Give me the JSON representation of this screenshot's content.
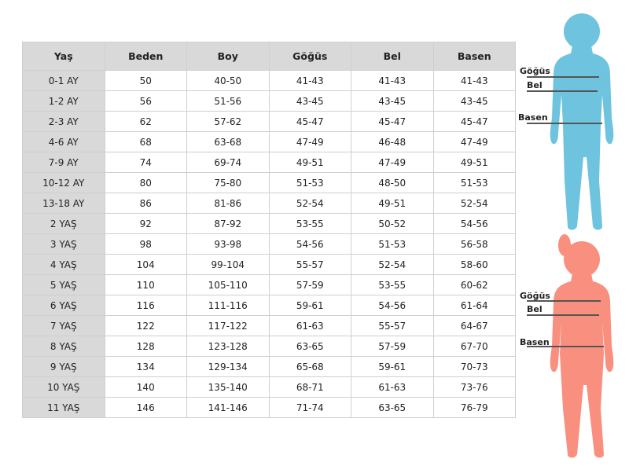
{
  "table": {
    "headers": [
      "Yaş",
      "Beden",
      "Boy",
      "Göğüs",
      "Bel",
      "Basen"
    ],
    "rows": [
      [
        "0-1 AY",
        "50",
        "40-50",
        "41-43",
        "41-43",
        "41-43"
      ],
      [
        "1-2 AY",
        "56",
        "51-56",
        "43-45",
        "43-45",
        "43-45"
      ],
      [
        "2-3 AY",
        "62",
        "57-62",
        "45-47",
        "45-47",
        "45-47"
      ],
      [
        "4-6 AY",
        "68",
        "63-68",
        "47-49",
        "46-48",
        "47-49"
      ],
      [
        "7-9 AY",
        "74",
        "69-74",
        "49-51",
        "47-49",
        "49-51"
      ],
      [
        "10-12 AY",
        "80",
        "75-80",
        "51-53",
        "48-50",
        "51-53"
      ],
      [
        "13-18 AY",
        "86",
        "81-86",
        "52-54",
        "49-51",
        "52-54"
      ],
      [
        "2 YAŞ",
        "92",
        "87-92",
        "53-55",
        "50-52",
        "54-56"
      ],
      [
        "3 YAŞ",
        "98",
        "93-98",
        "54-56",
        "51-53",
        "56-58"
      ],
      [
        "4 YAŞ",
        "104",
        "99-104",
        "55-57",
        "52-54",
        "58-60"
      ],
      [
        "5 YAŞ",
        "110",
        "105-110",
        "57-59",
        "53-55",
        "60-62"
      ],
      [
        "6 YAŞ",
        "116",
        "111-116",
        "59-61",
        "54-56",
        "61-64"
      ],
      [
        "7 YAŞ",
        "122",
        "117-122",
        "61-63",
        "55-57",
        "64-67"
      ],
      [
        "8 YAŞ",
        "128",
        "123-128",
        "63-65",
        "57-59",
        "67-70"
      ],
      [
        "9 YAŞ",
        "134",
        "129-134",
        "65-68",
        "59-61",
        "70-73"
      ],
      [
        "10 YAŞ",
        "140",
        "135-140",
        "68-71",
        "61-63",
        "73-76"
      ],
      [
        "11 YAŞ",
        "146",
        "141-146",
        "71-74",
        "63-65",
        "76-79"
      ]
    ]
  },
  "figures": {
    "labels": {
      "chest": "Göğüs",
      "waist": "Bel",
      "hip": "Basen"
    },
    "boy_color": "#6ec3de",
    "girl_color": "#f98f7f"
  }
}
